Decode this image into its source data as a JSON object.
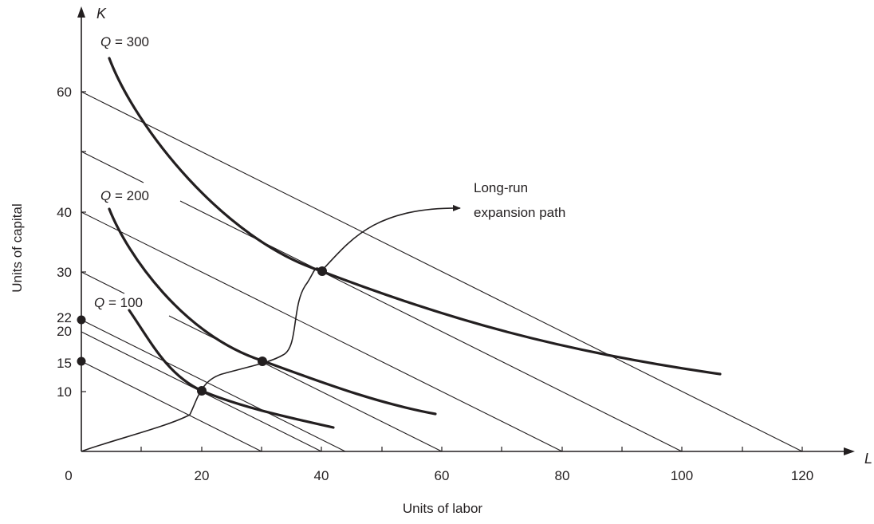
{
  "diagram": {
    "axes": {
      "x_variable": "L",
      "y_variable": "K",
      "x_title": "Units of labor",
      "y_title": "Units of capital",
      "x_ticks": [
        "0",
        "20",
        "40",
        "60",
        "80",
        "100",
        "120"
      ],
      "y_ticks": [
        "10",
        "15",
        "20",
        "22",
        "30",
        "40",
        "60"
      ]
    },
    "isoquants": [
      {
        "q_var": "Q",
        "q_rest": " = 100"
      },
      {
        "q_var": "Q",
        "q_rest": " = 200"
      },
      {
        "q_var": "Q",
        "q_rest": " = 300"
      }
    ],
    "expansion_path": {
      "label_line1": "Long-run",
      "label_line2": "expansion path"
    },
    "colors": {
      "ink": "#231f20",
      "background": "#ffffff"
    }
  }
}
